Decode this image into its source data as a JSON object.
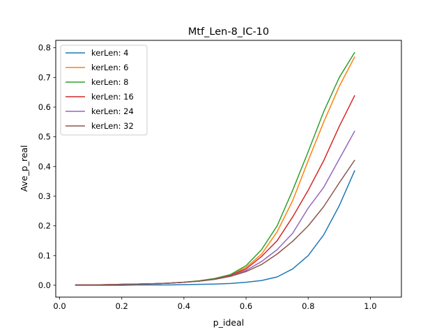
{
  "chart_data": {
    "type": "line",
    "title": "Mtf_Len-8_IC-10",
    "xlabel": "p_ideal",
    "ylabel": "Ave_p_real",
    "xlim": [
      -0.0125,
      1.1
    ],
    "ylim": [
      -0.04,
      0.825
    ],
    "xticks": [
      0.0,
      0.2,
      0.4,
      0.6,
      0.8,
      1.0
    ],
    "xtick_labels": [
      "0.0",
      "0.2",
      "0.4",
      "0.6",
      "0.8",
      "1.0"
    ],
    "yticks": [
      0.0,
      0.1,
      0.2,
      0.3,
      0.4,
      0.5,
      0.6,
      0.7,
      0.8
    ],
    "ytick_labels": [
      "0.0",
      "0.1",
      "0.2",
      "0.3",
      "0.4",
      "0.5",
      "0.6",
      "0.7",
      "0.8"
    ],
    "grid": false,
    "legend_position": "upper-left",
    "x": [
      0.05,
      0.1,
      0.15,
      0.2,
      0.25,
      0.3,
      0.35,
      0.4,
      0.45,
      0.5,
      0.55,
      0.6,
      0.65,
      0.7,
      0.75,
      0.8,
      0.85,
      0.9,
      0.95
    ],
    "series": [
      {
        "name": "kerLen: 4",
        "color": "#1f77b4",
        "values": [
          0.0,
          0.0,
          0.0,
          0.0,
          0.001,
          0.001,
          0.001,
          0.002,
          0.003,
          0.004,
          0.006,
          0.01,
          0.016,
          0.028,
          0.055,
          0.1,
          0.17,
          0.268,
          0.387
        ]
      },
      {
        "name": "kerLen: 6",
        "color": "#ff7f0e",
        "values": [
          0.001,
          0.001,
          0.002,
          0.003,
          0.004,
          0.005,
          0.007,
          0.01,
          0.015,
          0.022,
          0.034,
          0.06,
          0.105,
          0.18,
          0.285,
          0.42,
          0.55,
          0.67,
          0.77
        ]
      },
      {
        "name": "kerLen: 8",
        "color": "#2ca02c",
        "values": [
          0.001,
          0.001,
          0.002,
          0.003,
          0.004,
          0.005,
          0.007,
          0.01,
          0.015,
          0.023,
          0.036,
          0.066,
          0.12,
          0.2,
          0.32,
          0.45,
          0.585,
          0.7,
          0.785
        ]
      },
      {
        "name": "kerLen: 16",
        "color": "#d62728",
        "values": [
          0.001,
          0.001,
          0.002,
          0.003,
          0.004,
          0.005,
          0.007,
          0.01,
          0.014,
          0.021,
          0.033,
          0.055,
          0.097,
          0.15,
          0.23,
          0.32,
          0.42,
          0.535,
          0.64
        ]
      },
      {
        "name": "kerLen: 24",
        "color": "#9467bd",
        "values": [
          0.001,
          0.001,
          0.002,
          0.003,
          0.004,
          0.005,
          0.007,
          0.01,
          0.014,
          0.02,
          0.031,
          0.05,
          0.08,
          0.12,
          0.175,
          0.26,
          0.33,
          0.425,
          0.52
        ]
      },
      {
        "name": "kerLen: 32",
        "color": "#8c564b",
        "values": [
          0.001,
          0.001,
          0.002,
          0.003,
          0.004,
          0.005,
          0.007,
          0.01,
          0.014,
          0.02,
          0.03,
          0.046,
          0.07,
          0.105,
          0.148,
          0.2,
          0.265,
          0.345,
          0.422
        ]
      }
    ]
  }
}
